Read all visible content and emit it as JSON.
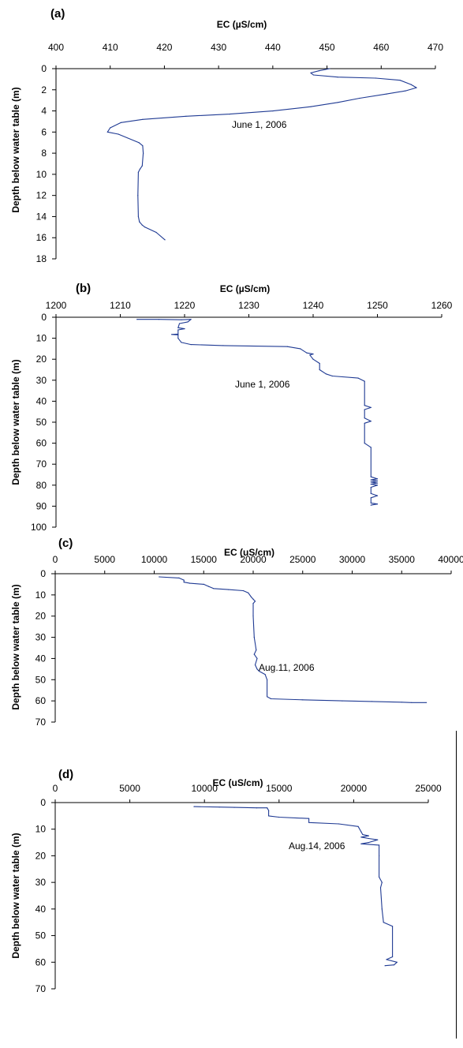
{
  "chart_data": [
    {
      "type": "line",
      "panel_label": "(a)",
      "xlabel": "EC (µS/cm)",
      "ylabel": "Depth below water table (m)",
      "annotation": "June 1, 2006",
      "xlim": [
        400,
        470
      ],
      "ylim": [
        0,
        18
      ],
      "x_ticks": [
        400,
        410,
        420,
        430,
        440,
        450,
        460,
        470
      ],
      "y_ticks": [
        0,
        2,
        4,
        6,
        8,
        10,
        12,
        14,
        16,
        18
      ],
      "series_color": "#1f3a93",
      "points": [
        [
          420.1,
          16.2
        ],
        [
          418.5,
          15.5
        ],
        [
          416.4,
          15.0
        ],
        [
          415.9,
          14.8
        ],
        [
          415.4,
          14.5
        ],
        [
          415.2,
          14.0
        ],
        [
          415.1,
          12.0
        ],
        [
          415.2,
          9.8
        ],
        [
          415.5,
          9.5
        ],
        [
          415.9,
          9.2
        ],
        [
          416.1,
          8.0
        ],
        [
          416.0,
          7.3
        ],
        [
          415.3,
          7.0
        ],
        [
          411.5,
          6.2
        ],
        [
          409.5,
          6.0
        ],
        [
          410.0,
          5.6
        ],
        [
          412.0,
          5.1
        ],
        [
          416.0,
          4.8
        ],
        [
          424.0,
          4.5
        ],
        [
          432.0,
          4.3
        ],
        [
          440.0,
          4.0
        ],
        [
          447.0,
          3.6
        ],
        [
          452.0,
          3.2
        ],
        [
          456.0,
          2.8
        ],
        [
          461.0,
          2.4
        ],
        [
          464.5,
          2.1
        ],
        [
          466.5,
          1.8
        ],
        [
          465.5,
          1.5
        ],
        [
          463.5,
          1.1
        ],
        [
          459.0,
          0.9
        ],
        [
          452.0,
          0.8
        ],
        [
          447.5,
          0.6
        ],
        [
          447.0,
          0.4
        ],
        [
          448.5,
          0.2
        ],
        [
          450.5,
          0.0
        ]
      ]
    },
    {
      "type": "line",
      "panel_label": "(b)",
      "xlabel": "EC (µS/cm)",
      "ylabel": "Depth below water table (m)",
      "annotation": "June 1, 2006",
      "xlim": [
        1200,
        1260
      ],
      "ylim": [
        0,
        100
      ],
      "x_ticks": [
        1200,
        1210,
        1220,
        1230,
        1240,
        1250,
        1260
      ],
      "y_ticks": [
        0,
        10,
        20,
        30,
        40,
        50,
        60,
        70,
        80,
        90,
        100
      ],
      "series_color": "#1f3a93",
      "points": [
        [
          1212.6,
          1.0
        ],
        [
          1216.0,
          1.0
        ],
        [
          1219.5,
          1.2
        ],
        [
          1221.0,
          1.0
        ],
        [
          1220.5,
          2.2
        ],
        [
          1219.2,
          3.0
        ],
        [
          1219.0,
          5.0
        ],
        [
          1220.0,
          5.5
        ],
        [
          1219.0,
          6.0
        ],
        [
          1219.0,
          8.0
        ],
        [
          1218.0,
          8.2
        ],
        [
          1219.0,
          8.4
        ],
        [
          1219.0,
          10.0
        ],
        [
          1219.5,
          12.0
        ],
        [
          1221.0,
          13.0
        ],
        [
          1226.0,
          13.5
        ],
        [
          1236.0,
          14.0
        ],
        [
          1238.0,
          15.0
        ],
        [
          1239.0,
          17.0
        ],
        [
          1240.0,
          17.5
        ],
        [
          1239.5,
          18.0
        ],
        [
          1240.0,
          20.0
        ],
        [
          1241.0,
          22.0
        ],
        [
          1241.0,
          25.0
        ],
        [
          1242.0,
          27.0
        ],
        [
          1243.0,
          28.0
        ],
        [
          1247.0,
          29.0
        ],
        [
          1248.0,
          30.5
        ],
        [
          1248.0,
          42.0
        ],
        [
          1249.0,
          43.0
        ],
        [
          1248.0,
          44.0
        ],
        [
          1248.0,
          48.0
        ],
        [
          1249.0,
          49.5
        ],
        [
          1248.0,
          50.5
        ],
        [
          1248.0,
          60.0
        ],
        [
          1249.0,
          62.0
        ],
        [
          1249.0,
          76.0
        ],
        [
          1250.0,
          77.0
        ],
        [
          1249.0,
          77.5
        ],
        [
          1250.0,
          78.0
        ],
        [
          1249.0,
          78.5
        ],
        [
          1250.0,
          79.0
        ],
        [
          1249.0,
          79.5
        ],
        [
          1250.0,
          80.0
        ],
        [
          1249.0,
          81.0
        ],
        [
          1249.0,
          84.0
        ],
        [
          1250.0,
          85.0
        ],
        [
          1249.0,
          86.0
        ],
        [
          1249.0,
          88.5
        ],
        [
          1250.0,
          89.0
        ],
        [
          1249.0,
          89.5
        ]
      ]
    },
    {
      "type": "line",
      "panel_label": "(c)",
      "xlabel": "EC (uS/cm)",
      "ylabel": "Depth below water table (m)",
      "annotation": "Aug.11, 2006",
      "xlim": [
        0,
        40000
      ],
      "ylim": [
        0,
        70
      ],
      "x_ticks": [
        0,
        5000,
        10000,
        15000,
        20000,
        25000,
        30000,
        35000,
        40000
      ],
      "y_ticks": [
        0,
        10,
        20,
        30,
        40,
        50,
        60,
        70
      ],
      "series_color": "#1f3a93",
      "points": [
        [
          10500,
          1.5
        ],
        [
          12500,
          2.0
        ],
        [
          13000,
          3.0
        ],
        [
          13000,
          4.0
        ],
        [
          13600,
          4.5
        ],
        [
          15000,
          5.0
        ],
        [
          15500,
          6.0
        ],
        [
          16000,
          7.0
        ],
        [
          17500,
          7.5
        ],
        [
          19000,
          8.0
        ],
        [
          19500,
          9.0
        ],
        [
          19800,
          11.0
        ],
        [
          20000,
          12.0
        ],
        [
          20200,
          13.0
        ],
        [
          20000,
          14.0
        ],
        [
          20000,
          20.0
        ],
        [
          20100,
          30.0
        ],
        [
          20300,
          36.0
        ],
        [
          20100,
          38.0
        ],
        [
          20400,
          40.0
        ],
        [
          20200,
          43.0
        ],
        [
          20400,
          45.0
        ],
        [
          20600,
          46.0
        ],
        [
          21200,
          47.5
        ],
        [
          21400,
          50.0
        ],
        [
          21400,
          58.0
        ],
        [
          21800,
          59.0
        ],
        [
          25000,
          59.5
        ],
        [
          29000,
          60.0
        ],
        [
          32000,
          60.3
        ],
        [
          35000,
          60.6
        ],
        [
          36000,
          60.8
        ],
        [
          37500,
          60.8
        ]
      ]
    },
    {
      "type": "line",
      "panel_label": "(d)",
      "xlabel": "EC (uS/cm)",
      "ylabel": "Depth below water table (m)",
      "annotation": "Aug.14, 2006",
      "xlim": [
        0,
        25000
      ],
      "ylim": [
        0,
        70
      ],
      "x_ticks": [
        0,
        5000,
        10000,
        15000,
        20000,
        25000
      ],
      "y_ticks": [
        0,
        10,
        20,
        30,
        40,
        50,
        60,
        70
      ],
      "series_color": "#1f3a93",
      "points": [
        [
          9300,
          1.5
        ],
        [
          11000,
          1.7
        ],
        [
          12000,
          1.8
        ],
        [
          13500,
          2.0
        ],
        [
          14200,
          2.0
        ],
        [
          14300,
          3.0
        ],
        [
          14300,
          5.0
        ],
        [
          15000,
          5.5
        ],
        [
          17000,
          6.0
        ],
        [
          17000,
          7.5
        ],
        [
          19000,
          8.0
        ],
        [
          20300,
          9.0
        ],
        [
          20500,
          11.0
        ],
        [
          20600,
          12.0
        ],
        [
          21000,
          12.5
        ],
        [
          20500,
          13.0
        ],
        [
          21000,
          13.5
        ],
        [
          21600,
          14.0
        ],
        [
          21000,
          15.0
        ],
        [
          20500,
          15.5
        ],
        [
          21700,
          16.0
        ],
        [
          21700,
          20.0
        ],
        [
          21700,
          28.0
        ],
        [
          21900,
          30.0
        ],
        [
          21800,
          32.0
        ],
        [
          21900,
          40.0
        ],
        [
          22000,
          45.0
        ],
        [
          22600,
          46.5
        ],
        [
          22600,
          58.0
        ],
        [
          22200,
          59.0
        ],
        [
          22900,
          60.0
        ],
        [
          22700,
          61.0
        ],
        [
          22100,
          61.3
        ]
      ]
    }
  ]
}
